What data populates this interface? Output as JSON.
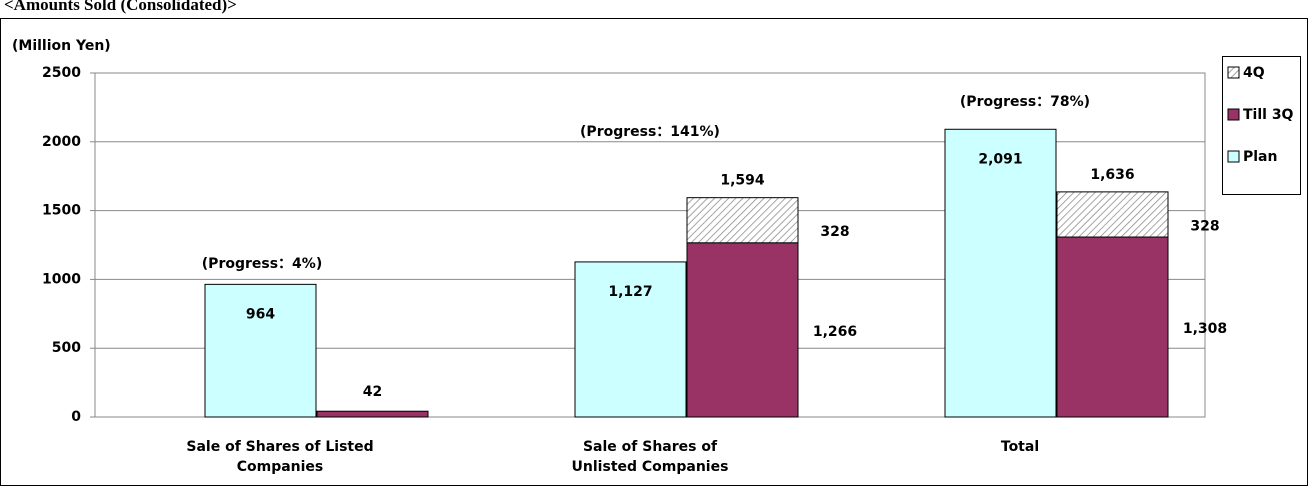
{
  "chart_data": {
    "type": "bar",
    "title": "<Amounts Sold (Consolidated)>",
    "y_axis_label": "(Million Yen)",
    "categories": [
      [
        "Sale of Shares of Listed",
        "Companies"
      ],
      [
        "Sale of Shares of",
        "Unlisted Companies"
      ],
      [
        "Total"
      ]
    ],
    "series": [
      {
        "name": "Plan",
        "color": "#ccffff",
        "values": [
          964,
          1127,
          2091
        ],
        "value_labels": [
          "964",
          "1,127",
          "2,091"
        ]
      },
      {
        "name": "Till 3Q",
        "color": "#993366",
        "values": [
          42,
          1266,
          1308
        ],
        "value_labels": [
          "42",
          "1,266",
          "1,308"
        ]
      },
      {
        "name": "4Q",
        "color": "hatched",
        "values": [
          null,
          328,
          328
        ],
        "value_labels": [
          null,
          "328",
          "328"
        ]
      }
    ],
    "stack_totals": [
      null,
      1594,
      1636
    ],
    "stack_total_labels": [
      null,
      "1,594",
      "1,636"
    ],
    "annotations": [
      "(Progress：4%)",
      "(Progress：141%)",
      "(Progress：78%)"
    ],
    "legend_order": [
      2,
      1,
      0
    ],
    "legend": "right",
    "ylim": [
      0,
      2500
    ],
    "yticks": [
      0,
      500,
      1000,
      1500,
      2000,
      2500
    ],
    "grid": true
  }
}
